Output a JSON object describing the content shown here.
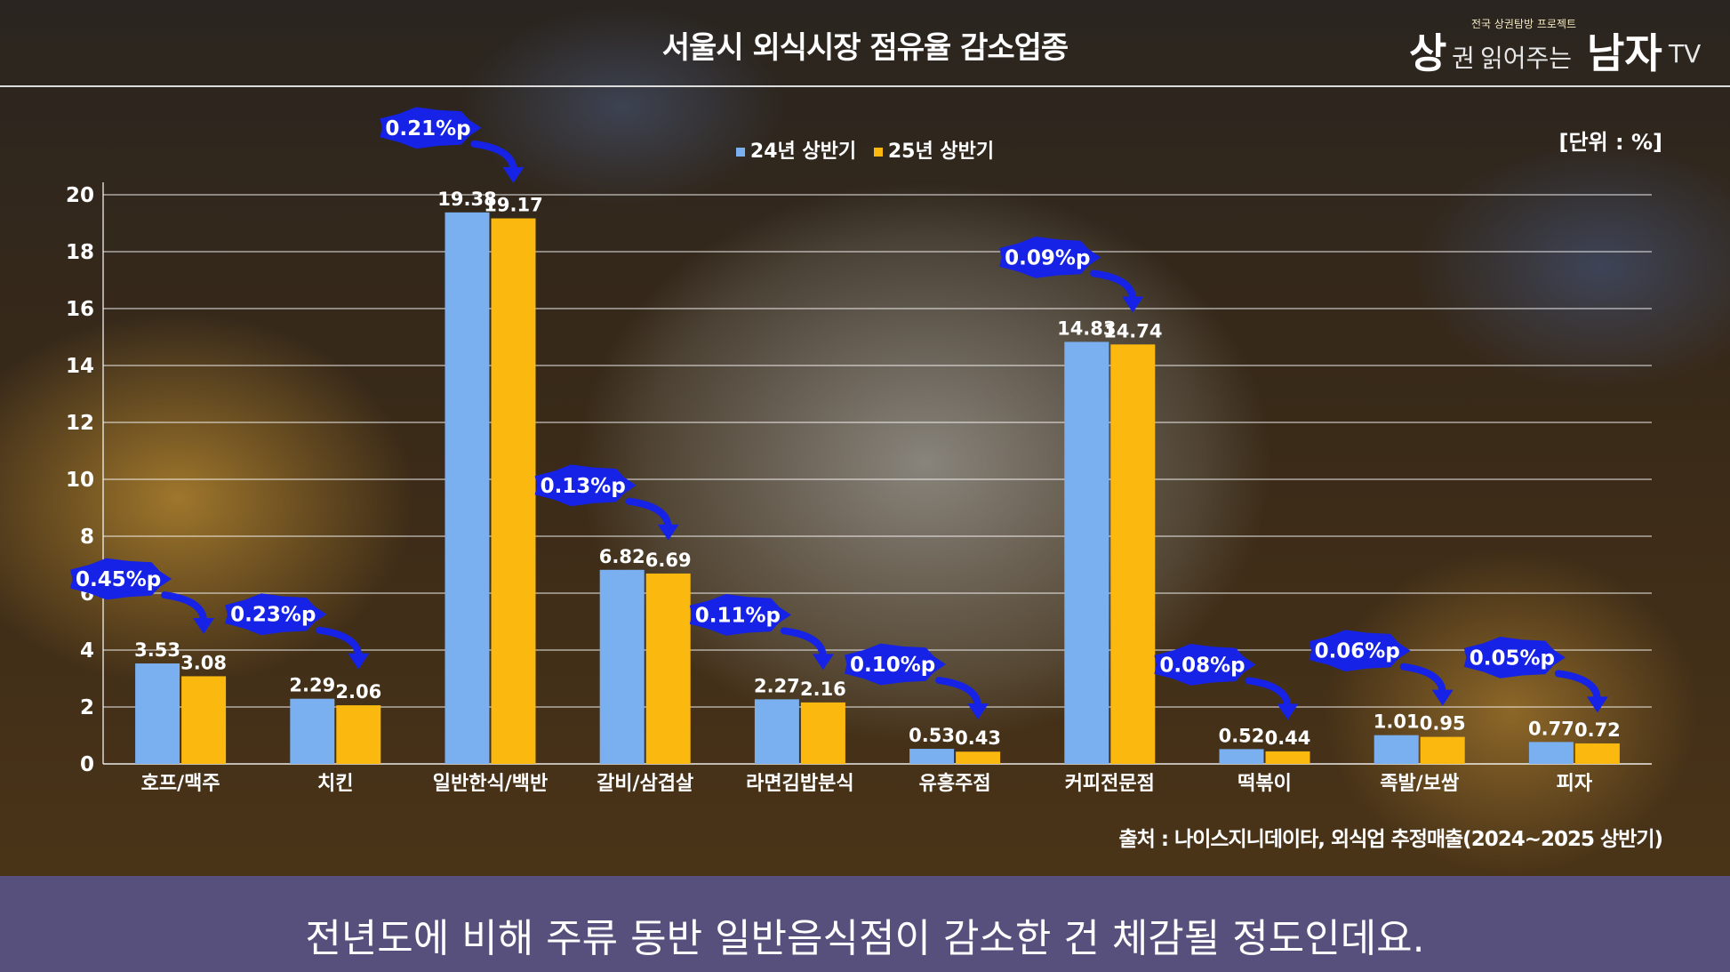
{
  "header": {
    "title": "서울시 외식시장 점유율 감소업종",
    "unit": "[단위 : %]"
  },
  "logo": {
    "main1": "상",
    "main2": "권",
    "main3": "읽어주는",
    "main4": "남자",
    "main5": "TV",
    "tagline": "전국 상권탐방 프로젝트"
  },
  "source": "출처 : 나이스지니데이타, 외식업 추정매출(2024~2025 상반기)",
  "subtitle": "전년도에 비해 주류 동반 일반음식점이 감소한 건 체감될 정도인데요.",
  "colors": {
    "series1": "#7ab0ef",
    "series2": "#fbb80f",
    "cloud": "#1622e6",
    "arrow": "#1622e6"
  },
  "chart_data": {
    "type": "bar",
    "ylim": [
      0,
      20
    ],
    "yticks": [
      0,
      2,
      4,
      6,
      8,
      10,
      12,
      14,
      16,
      18,
      20
    ],
    "grid": true,
    "legend_position": "top",
    "categories": [
      "호프/맥주",
      "치킨",
      "일반한식/백반",
      "갈비/삼겹살",
      "라면김밥분식",
      "유흥주점",
      "커피전문점",
      "떡볶이",
      "족발/보쌈",
      "피자"
    ],
    "series": [
      {
        "name": "24년 상반기",
        "values": [
          3.53,
          2.29,
          19.38,
          6.82,
          2.27,
          0.53,
          14.83,
          0.52,
          1.01,
          0.77
        ]
      },
      {
        "name": "25년 상반기",
        "values": [
          3.08,
          2.06,
          19.17,
          6.69,
          2.16,
          0.43,
          14.74,
          0.44,
          0.95,
          0.72
        ]
      }
    ],
    "annotations": [
      "0.45%p",
      "0.23%p",
      "0.21%p",
      "0.13%p",
      "0.11%p",
      "0.10%p",
      "0.09%p",
      "0.08%p",
      "0.06%p",
      "0.05%p"
    ]
  }
}
